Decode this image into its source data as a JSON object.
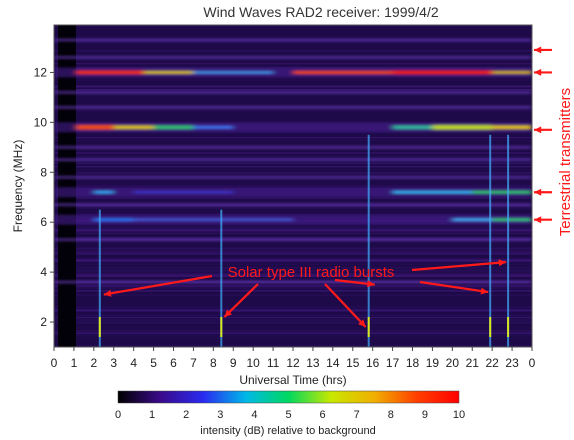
{
  "chart_data": {
    "type": "heatmap",
    "title": "Wind Waves RAD2 receiver: 1999/4/2",
    "xlabel": "Universal Time (hrs)",
    "ylabel": "Frequency (MHz)",
    "xlim": [
      0,
      24
    ],
    "ylim": [
      1,
      13.9
    ],
    "x_ticks": [
      "0",
      "1",
      "2",
      "3",
      "4",
      "5",
      "6",
      "7",
      "8",
      "9",
      "10",
      "11",
      "12",
      "13",
      "14",
      "15",
      "16",
      "17",
      "18",
      "19",
      "20",
      "21",
      "22",
      "23",
      "0"
    ],
    "y_ticks": [
      "2",
      "4",
      "6",
      "8",
      "10",
      "12"
    ],
    "y_tick_values": [
      2,
      4,
      6,
      8,
      10,
      12
    ],
    "grid": false,
    "colorbar": {
      "label": "intensity (dB) relative to background",
      "range": [
        0,
        10
      ],
      "ticks": [
        "0",
        "1",
        "2",
        "3",
        "4",
        "5",
        "6",
        "7",
        "8",
        "9",
        "10"
      ],
      "colors": [
        "#000000",
        "#3a0a8a",
        "#2a2af0",
        "#00b8e8",
        "#00d860",
        "#c8e800",
        "#f0b000",
        "#ff4000",
        "#ff0000"
      ]
    },
    "bands": [
      {
        "freq": 12.0,
        "label_intensity": 8.5
      },
      {
        "freq": 9.8,
        "label_intensity": 7.5
      },
      {
        "freq": 7.2,
        "label_intensity": 5
      },
      {
        "freq": 6.1,
        "label_intensity": 4
      }
    ],
    "annotations": {
      "bursts_label": "Solar type III radio bursts",
      "transmitters_label": "Terrestrial transmitters",
      "burst_times": [
        2.3,
        8.4,
        15.8,
        21.9,
        22.8
      ],
      "transmitter_freqs": [
        12.9,
        12.0,
        9.7,
        7.2,
        6.1
      ]
    },
    "colors": {
      "background": "#1e0a48",
      "annotation": "#ff1a1a"
    }
  }
}
